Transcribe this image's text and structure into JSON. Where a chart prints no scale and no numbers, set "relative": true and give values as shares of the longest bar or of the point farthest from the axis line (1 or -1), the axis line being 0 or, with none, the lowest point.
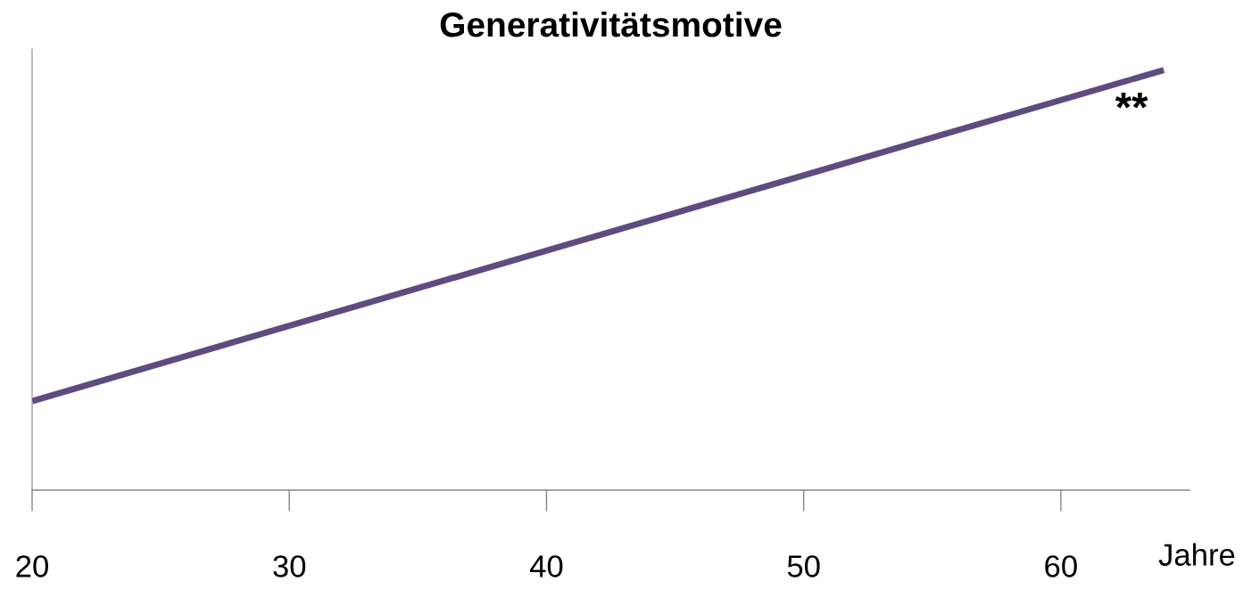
{
  "chart_data": {
    "type": "line",
    "title": "Generativitätsmotive",
    "xlabel": "Jahre",
    "relative": true,
    "series": [
      {
        "color": "#5f4b80",
        "x": [
          20,
          64
        ],
        "values": [
          0.212,
          1
        ]
      }
    ],
    "xlim": [
      20,
      65
    ],
    "xticks": [
      20,
      30,
      40,
      50,
      60
    ],
    "annotations": [
      "**"
    ],
    "grid": false,
    "legend": false,
    "marker": "none",
    "line_style": "solid"
  }
}
